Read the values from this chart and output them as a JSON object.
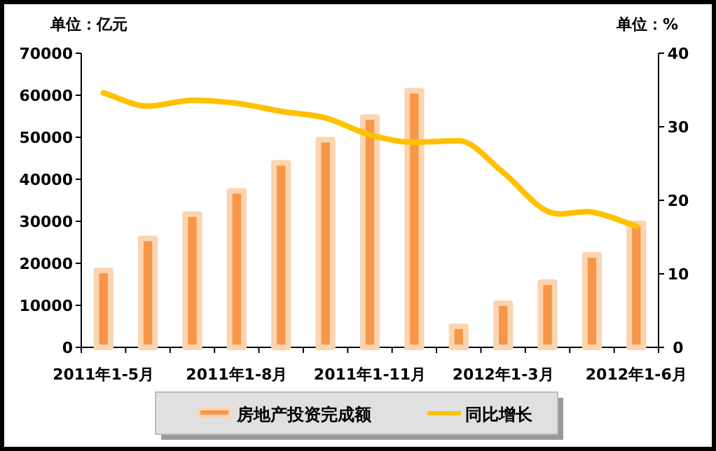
{
  "chart_data": {
    "type": "bar",
    "ylabel": "单位：亿元",
    "y2label": "单位：%",
    "categories": [
      "2011年1-5月",
      null,
      null,
      "2011年1-8月",
      null,
      null,
      "2011年1-11月",
      null,
      null,
      "2012年1-3月",
      null,
      null,
      "2012年1-6月"
    ],
    "series": [
      {
        "name": "房地产投资完成额",
        "color": "#f79646",
        "values": [
          18300,
          25900,
          31700,
          37200,
          43900,
          49400,
          54800,
          61100,
          5000,
          10500,
          15500,
          22000,
          29500
        ]
      },
      {
        "name": "同比增长",
        "type": "line",
        "axis": "y2",
        "color": "#ffc000",
        "values": [
          34.6,
          32.8,
          33.6,
          33.2,
          32.1,
          31.2,
          28.9,
          27.9,
          28.1,
          23.8,
          18.5,
          18.4,
          16.5
        ]
      }
    ],
    "ylim": [
      0,
      70000
    ],
    "yticks": [
      0,
      10000,
      20000,
      30000,
      40000,
      50000,
      60000,
      70000
    ],
    "y2lim": [
      0,
      40
    ],
    "y2ticks": [
      0,
      10,
      20,
      30,
      40
    ],
    "legend": "bottom",
    "grid": false
  }
}
